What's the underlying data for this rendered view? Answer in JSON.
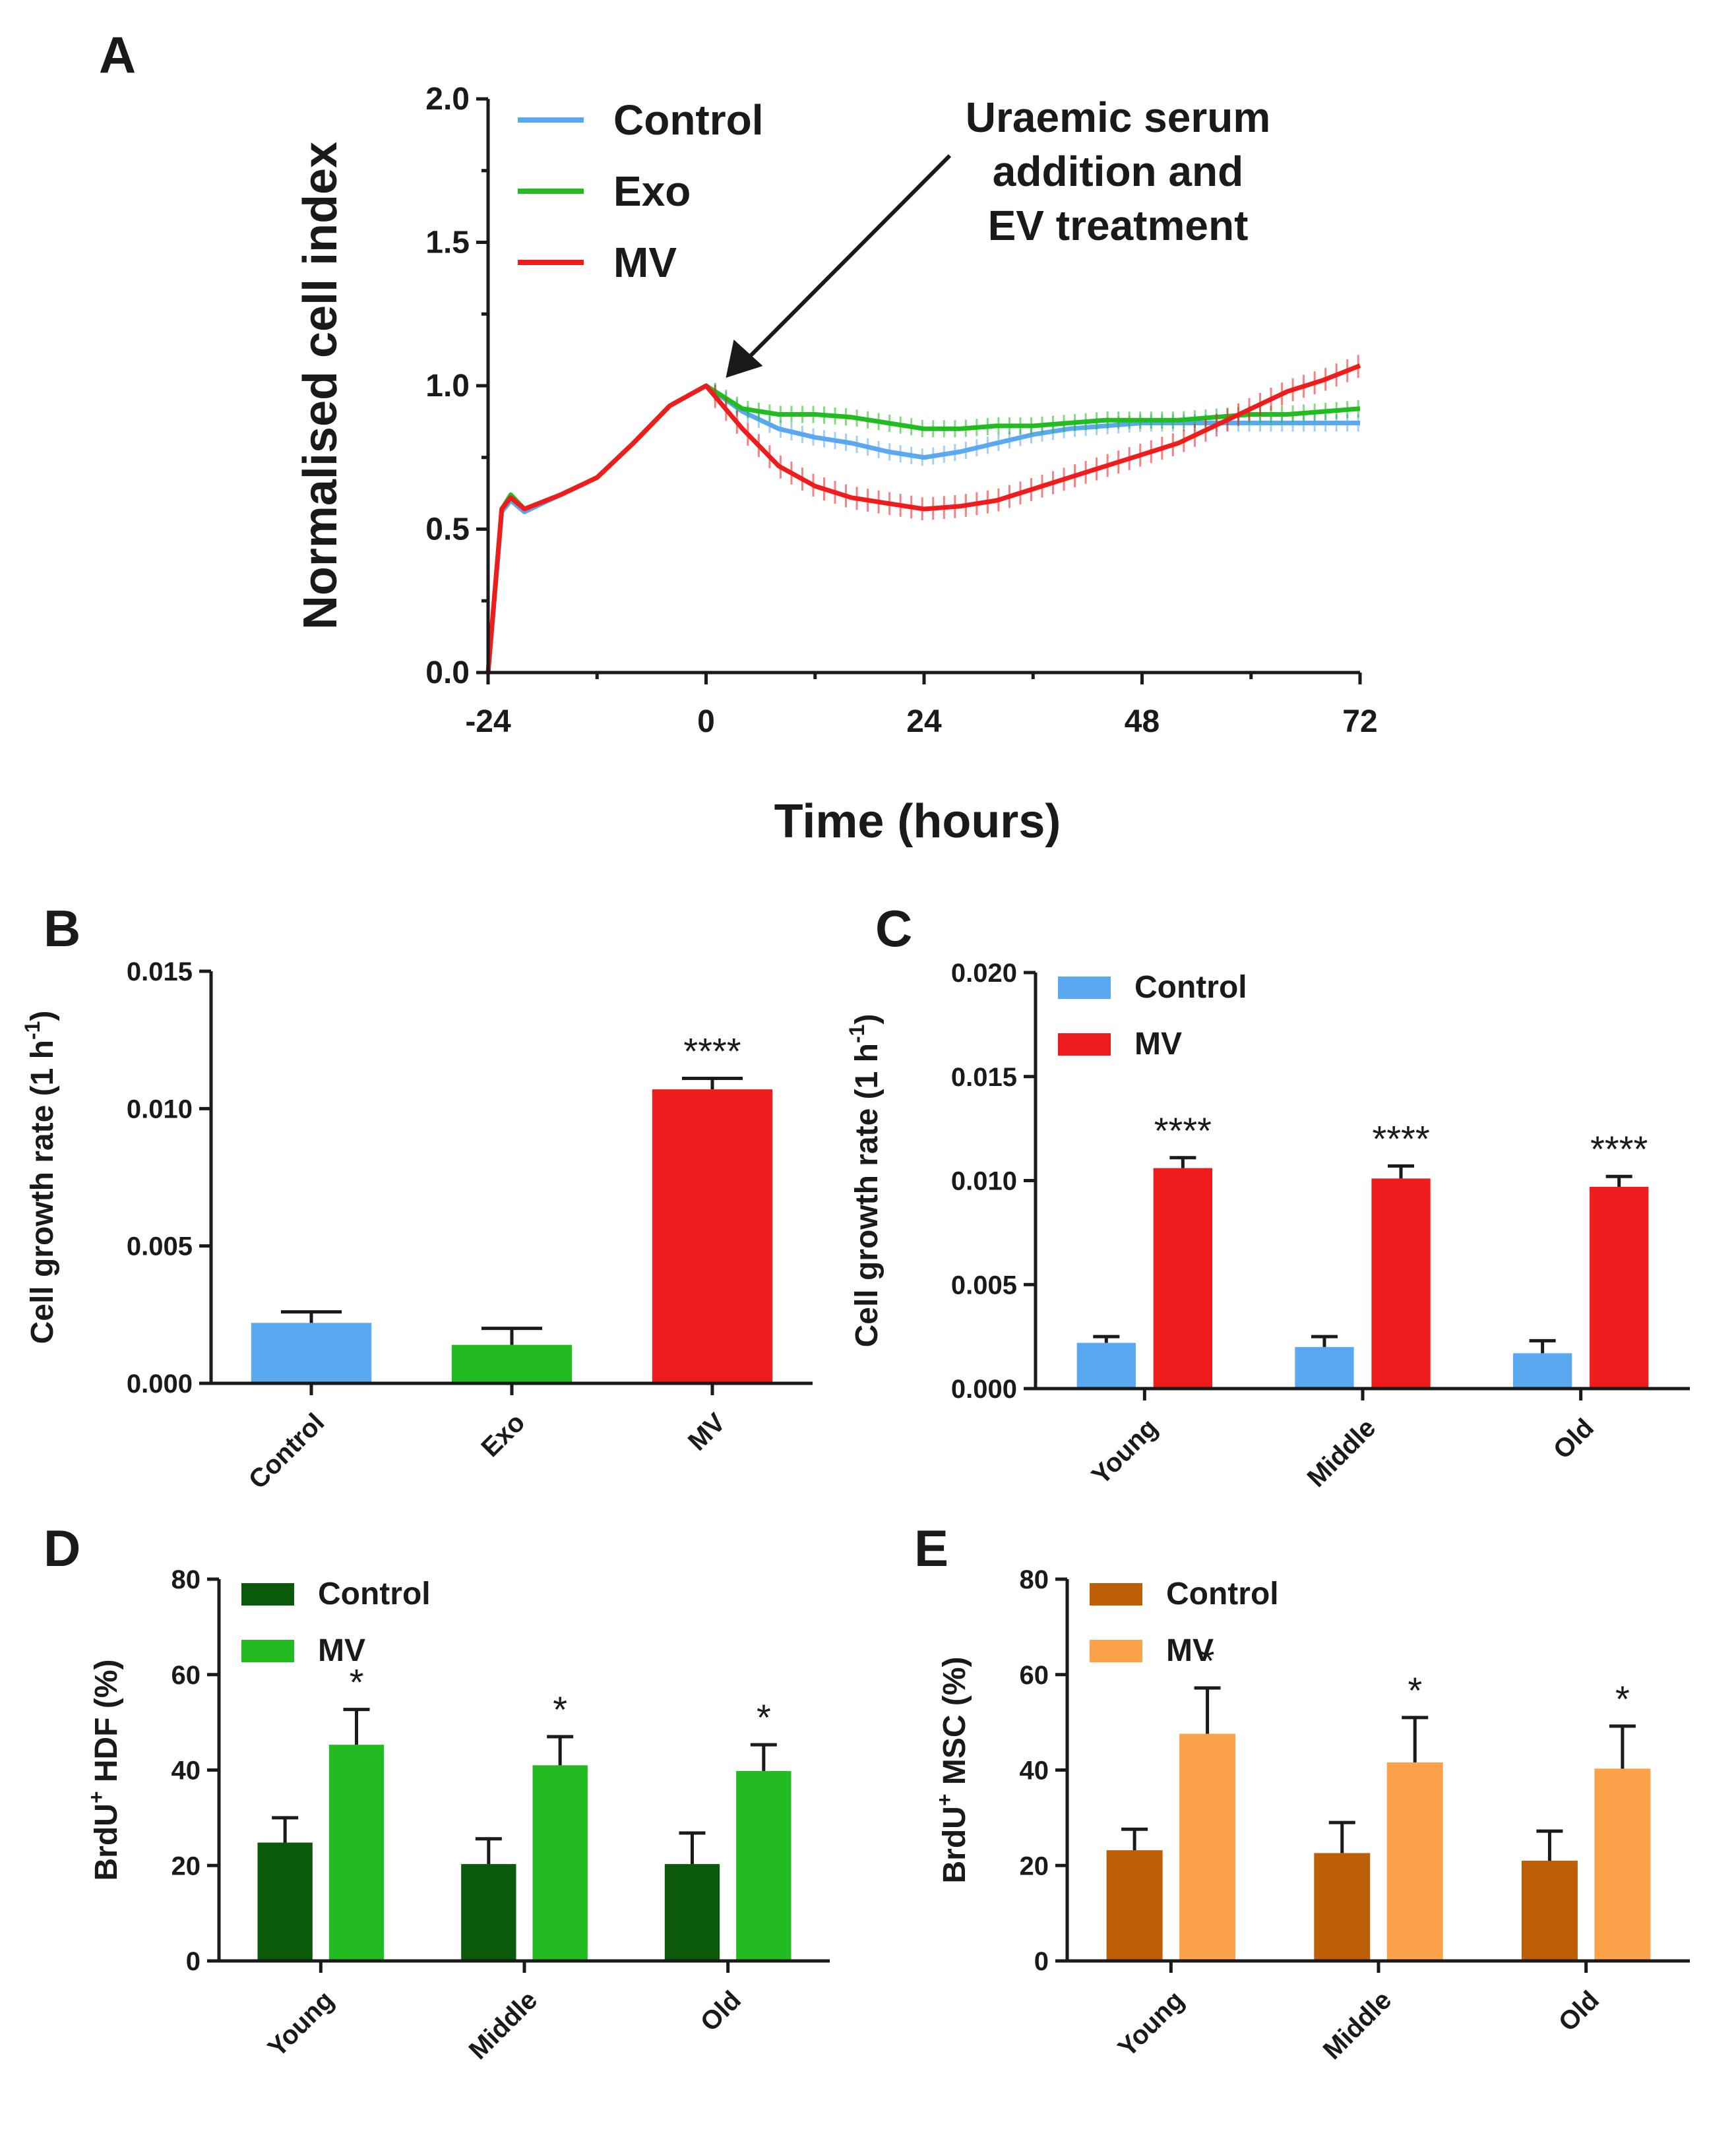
{
  "chart_data": [
    {
      "panel": "A",
      "type": "line",
      "title": "",
      "xlabel": "Time (hours)",
      "ylabel": "Normalised cell index",
      "xlim": [
        -24,
        72
      ],
      "ylim": [
        0.0,
        2.0
      ],
      "xticks": [
        "-24",
        "0",
        "24",
        "48",
        "72"
      ],
      "yticks": [
        "0.0",
        "0.5",
        "1.0",
        "1.5",
        "2.0"
      ],
      "annotation": {
        "lines": [
          "Uraemic serum",
          "addition and",
          "EV treatment"
        ],
        "points_to_x": 0,
        "points_to_y": 1.0
      },
      "legend_position": "top-left",
      "series": [
        {
          "name": "Control",
          "color": "#5aa8f0",
          "x": [
            -24,
            -22.5,
            -21.5,
            -20,
            -16,
            -12,
            -8,
            -4,
            0,
            4,
            8,
            12,
            16,
            20,
            24,
            28,
            32,
            36,
            40,
            44,
            48,
            52,
            56,
            60,
            64,
            68,
            72
          ],
          "y": [
            0.0,
            0.56,
            0.6,
            0.56,
            0.62,
            0.68,
            0.8,
            0.93,
            1.0,
            0.91,
            0.85,
            0.82,
            0.8,
            0.77,
            0.75,
            0.77,
            0.8,
            0.83,
            0.85,
            0.86,
            0.87,
            0.87,
            0.87,
            0.87,
            0.87,
            0.87,
            0.87
          ],
          "error": 0.03
        },
        {
          "name": "Exo",
          "color": "#22bb22",
          "x": [
            -24,
            -22.5,
            -21.5,
            -20,
            -16,
            -12,
            -8,
            -4,
            0,
            4,
            8,
            12,
            16,
            20,
            24,
            28,
            32,
            36,
            40,
            44,
            48,
            52,
            56,
            60,
            64,
            68,
            72
          ],
          "y": [
            0.0,
            0.57,
            0.62,
            0.57,
            0.62,
            0.68,
            0.8,
            0.93,
            1.0,
            0.92,
            0.9,
            0.9,
            0.89,
            0.87,
            0.85,
            0.85,
            0.86,
            0.86,
            0.87,
            0.88,
            0.88,
            0.88,
            0.89,
            0.9,
            0.9,
            0.91,
            0.92
          ],
          "error": 0.03
        },
        {
          "name": "MV",
          "color": "#ee1c1c",
          "x": [
            -24,
            -22.5,
            -21.5,
            -20,
            -16,
            -12,
            -8,
            -4,
            0,
            4,
            8,
            12,
            16,
            20,
            24,
            28,
            32,
            36,
            40,
            44,
            48,
            52,
            56,
            60,
            64,
            68,
            72
          ],
          "y": [
            0.0,
            0.57,
            0.61,
            0.57,
            0.62,
            0.68,
            0.8,
            0.93,
            1.0,
            0.85,
            0.72,
            0.65,
            0.61,
            0.59,
            0.57,
            0.58,
            0.6,
            0.64,
            0.68,
            0.72,
            0.76,
            0.8,
            0.86,
            0.92,
            0.98,
            1.02,
            1.07
          ],
          "error": 0.04
        }
      ]
    },
    {
      "panel": "B",
      "type": "bar",
      "title": "",
      "xlabel": "",
      "ylabel": "Cell growth rate (1 h",
      "ylabel_sup": "-1",
      "ylabel_end": ")",
      "ylim": [
        0,
        0.015
      ],
      "yticks": [
        "0.000",
        "0.005",
        "0.010",
        "0.015"
      ],
      "categories": [
        "Control",
        "Exo",
        "MV"
      ],
      "series": [
        {
          "name": "Cell growth rate",
          "values": [
            0.0022,
            0.0014,
            0.0107
          ],
          "errors": [
            0.0004,
            0.0006,
            0.0004
          ],
          "colors": [
            "#5aa8f0",
            "#22bb22",
            "#ee1c1c"
          ]
        }
      ],
      "significance": [
        "",
        "",
        "****"
      ]
    },
    {
      "panel": "C",
      "type": "bar",
      "title": "",
      "xlabel": "",
      "ylabel": "Cell growth rate (1 h",
      "ylabel_sup": "-1",
      "ylabel_end": ")",
      "ylim": [
        0,
        0.02
      ],
      "yticks": [
        "0.000",
        "0.005",
        "0.010",
        "0.015",
        "0.020"
      ],
      "categories": [
        "Young",
        "Middle",
        "Old"
      ],
      "legend_position": "top-left",
      "series": [
        {
          "name": "Control",
          "color": "#5aa8f0",
          "values": [
            0.0022,
            0.002,
            0.0017
          ],
          "errors": [
            0.0003,
            0.0005,
            0.0006
          ]
        },
        {
          "name": "MV",
          "color": "#ee1c1c",
          "values": [
            0.0106,
            0.0101,
            0.0097
          ],
          "errors": [
            0.0005,
            0.0006,
            0.0005
          ]
        }
      ],
      "significance": [
        "****",
        "****",
        "****"
      ]
    },
    {
      "panel": "D",
      "type": "bar",
      "title": "",
      "xlabel": "",
      "ylabel_pre": "BrdU",
      "ylabel_sup": "+",
      "ylabel_post": " HDF (%)",
      "ylim": [
        0,
        80
      ],
      "yticks": [
        "0",
        "20",
        "40",
        "60",
        "80"
      ],
      "categories": [
        "Young",
        "Middle",
        "Old"
      ],
      "legend_position": "top-left",
      "series": [
        {
          "name": "Control",
          "color": "#0b5a0b",
          "values": [
            24.8,
            20.3,
            20.3
          ],
          "errors": [
            5.2,
            5.3,
            6.5
          ]
        },
        {
          "name": "MV",
          "color": "#22bb22",
          "values": [
            45.3,
            41.0,
            39.8
          ],
          "errors": [
            7.4,
            6.0,
            5.5
          ]
        }
      ],
      "significance": [
        "*",
        "*",
        "*"
      ]
    },
    {
      "panel": "E",
      "type": "bar",
      "title": "",
      "xlabel": "",
      "ylabel_pre": "BrdU",
      "ylabel_sup": "+",
      "ylabel_post": " MSC (%)",
      "ylim": [
        0,
        80
      ],
      "yticks": [
        "0",
        "20",
        "40",
        "60",
        "80"
      ],
      "categories": [
        "Young",
        "Middle",
        "Old"
      ],
      "legend_position": "top-left",
      "series": [
        {
          "name": "Control",
          "color": "#bc5f06",
          "values": [
            23.2,
            22.6,
            21.0
          ],
          "errors": [
            4.4,
            6.4,
            6.2
          ]
        },
        {
          "name": "MV",
          "color": "#fba24a",
          "values": [
            47.6,
            41.6,
            40.3
          ],
          "errors": [
            9.6,
            9.4,
            8.9
          ]
        }
      ],
      "significance": [
        "*",
        "*",
        "*"
      ]
    }
  ]
}
